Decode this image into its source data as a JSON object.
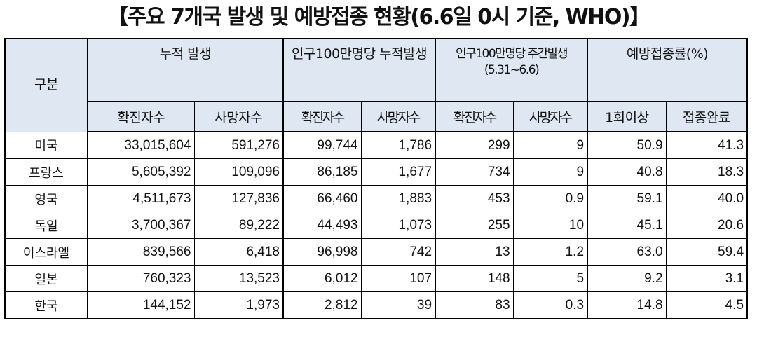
{
  "title": "【주요 7개국 발생 및 예방접종 현황(6.6일 0시 기준, WHO)】",
  "headers": {
    "category": "구분",
    "group_cumulative": "누적 발생",
    "group_per_million": "인구100만명당 누적발생",
    "group_weekly": "인구100만명당 주간발생(5.31~6.6)",
    "group_vaccination": "예방접종률(%)",
    "sub": [
      "확진자수",
      "사망자수",
      "확진자수",
      "사망자수",
      "확진자수",
      "사망자수",
      "1회이상",
      "접종완료"
    ]
  },
  "rows": [
    {
      "country": "미국",
      "values": [
        "33,015,604",
        "591,276",
        "99,744",
        "1,786",
        "299",
        "9",
        "50.9",
        "41.3"
      ]
    },
    {
      "country": "프랑스",
      "values": [
        "5,605,392",
        "109,096",
        "86,185",
        "1,677",
        "734",
        "9",
        "40.8",
        "18.3"
      ]
    },
    {
      "country": "영국",
      "values": [
        "4,511,673",
        "127,836",
        "66,460",
        "1,883",
        "453",
        "0.9",
        "59.1",
        "40.0"
      ]
    },
    {
      "country": "독일",
      "values": [
        "3,700,367",
        "89,222",
        "44,493",
        "1,073",
        "255",
        "10",
        "45.1",
        "20.6"
      ]
    },
    {
      "country": "이스라엘",
      "values": [
        "839,566",
        "6,418",
        "96,998",
        "742",
        "13",
        "1.2",
        "63.0",
        "59.4"
      ]
    },
    {
      "country": "일본",
      "values": [
        "760,323",
        "13,523",
        "6,012",
        "107",
        "148",
        "5",
        "9.2",
        "3.1"
      ]
    },
    {
      "country": "한국",
      "values": [
        "144,152",
        "1,973",
        "2,812",
        "39",
        "83",
        "0.3",
        "14.8",
        "4.5"
      ]
    }
  ]
}
